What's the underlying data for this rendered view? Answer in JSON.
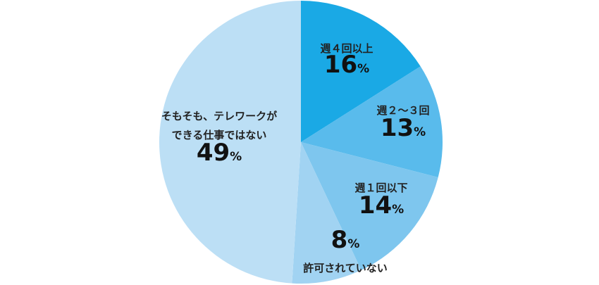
{
  "chart_data": {
    "type": "pie",
    "categories": [
      "週４回以上",
      "週２～３回",
      "週１回以下",
      "許可されていない",
      "そもそも、テレワークが\nできる仕事ではない"
    ],
    "values": [
      16,
      13,
      14,
      8,
      49
    ],
    "value_labels": [
      "16%",
      "13%",
      "14%",
      "8%",
      "49%"
    ],
    "colors": [
      "#1aa9e5",
      "#59bbec",
      "#7ec6ee",
      "#a1d3f2",
      "#bcdff5"
    ]
  }
}
